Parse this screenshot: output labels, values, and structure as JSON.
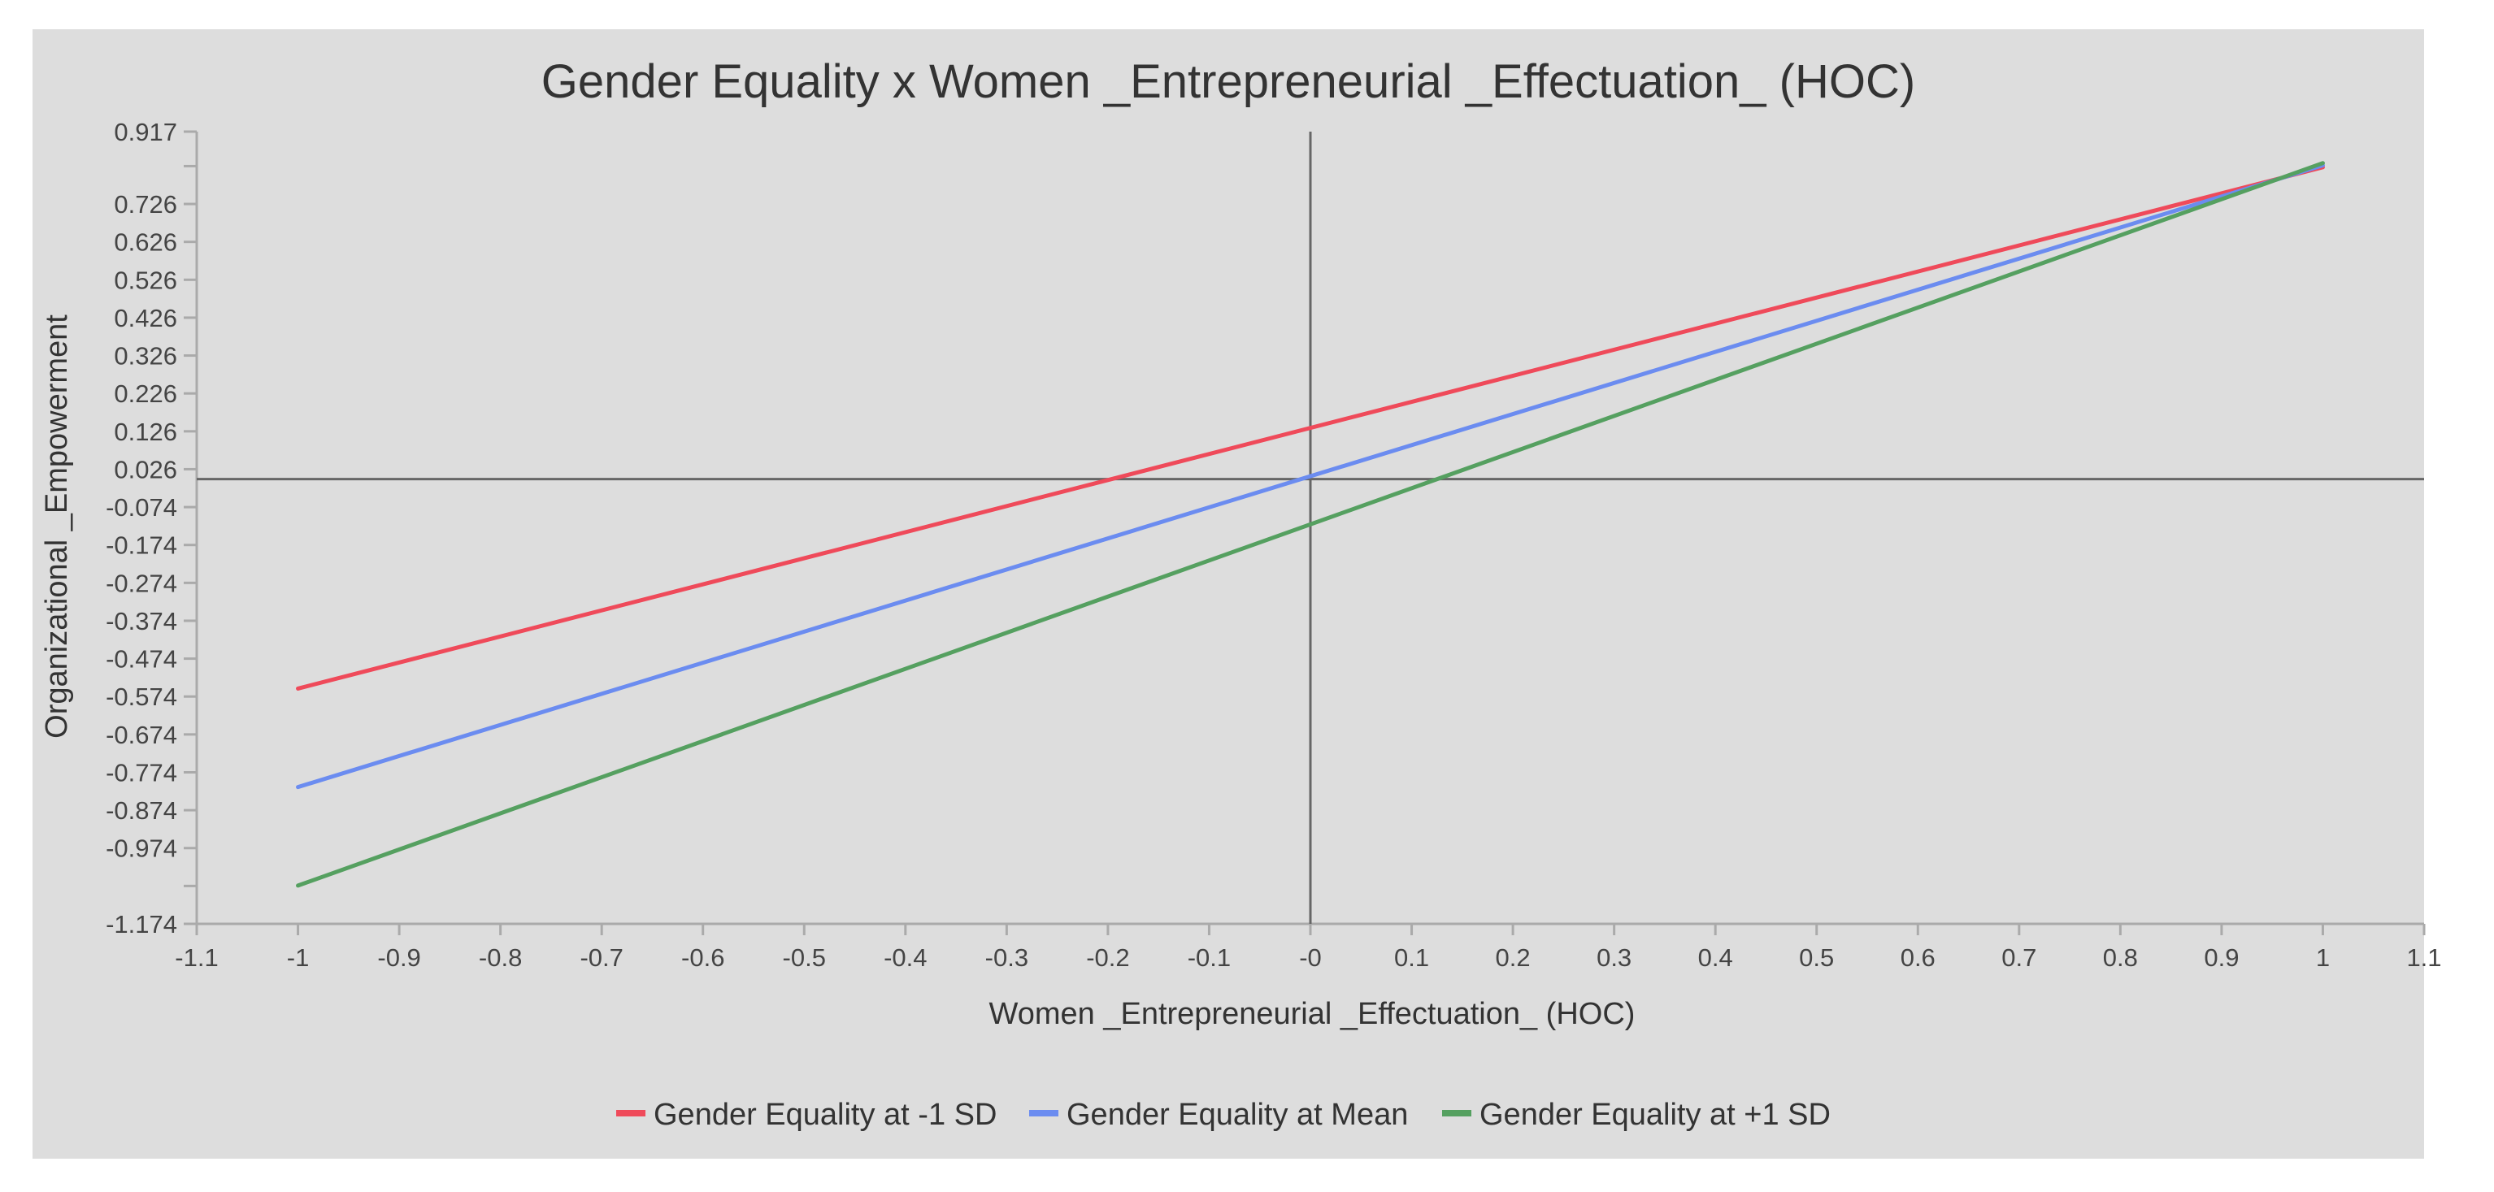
{
  "chart_data": {
    "type": "line",
    "title": "Gender Equality x Women _Entrepreneurial _Effectuation_ (HOC)",
    "xlabel": "Women _Entrepreneurial _Effectuation_ (HOC)",
    "ylabel": "Organizational _Empowerment",
    "xlim": [
      -1.1,
      1.1
    ],
    "ylim": [
      -1.174,
      0.917
    ],
    "x_ticks": [
      -1.1,
      -1,
      -0.9,
      -0.8,
      -0.7,
      -0.6,
      -0.5,
      -0.4,
      -0.3,
      -0.2,
      -0.1,
      0,
      0.1,
      0.2,
      0.3,
      0.4,
      0.5,
      0.6,
      0.7,
      0.8,
      0.9,
      1,
      1.1
    ],
    "x_tick_labels": [
      "-1.1",
      "-1",
      "-0.9",
      "-0.8",
      "-0.7",
      "-0.6",
      "-0.5",
      "-0.4",
      "-0.3",
      "-0.2",
      "-0.1",
      "-0",
      "0.1",
      "0.2",
      "0.3",
      "0.4",
      "0.5",
      "0.6",
      "0.7",
      "0.8",
      "0.9",
      "1",
      "1.1"
    ],
    "y_ticks": [
      0.917,
      0.726,
      0.626,
      0.526,
      0.426,
      0.326,
      0.226,
      0.126,
      0.026,
      -0.074,
      -0.174,
      -0.274,
      -0.374,
      -0.474,
      -0.574,
      -0.674,
      -0.774,
      -0.874,
      -0.974,
      -1.174
    ],
    "y_tick_labels": [
      "0.917",
      "0.726",
      "0.626",
      "0.526",
      "0.426",
      "0.326",
      "0.226",
      "0.126",
      "0.026",
      "-0.074",
      "-0.174",
      "-0.274",
      "-0.374",
      "-0.474",
      "-0.574",
      "-0.674",
      "-0.774",
      "-0.874",
      "-0.974",
      "-1.174"
    ],
    "y_minor_ticks": [
      0.826,
      -1.074
    ],
    "reference_lines": {
      "x": 0,
      "y": 0
    },
    "legend_position": "bottom",
    "series": [
      {
        "name": "Gender Equality at -1 SD",
        "color": "#ef4a5a",
        "x": [
          -1,
          1
        ],
        "y": [
          -0.553,
          0.823
        ]
      },
      {
        "name": "Gender Equality at Mean",
        "color": "#6b8cf0",
        "x": [
          -1,
          1
        ],
        "y": [
          -0.813,
          0.828
        ]
      },
      {
        "name": "Gender Equality at +1 SD",
        "color": "#55a060",
        "x": [
          -1,
          1
        ],
        "y": [
          -1.073,
          0.834
        ]
      }
    ]
  }
}
